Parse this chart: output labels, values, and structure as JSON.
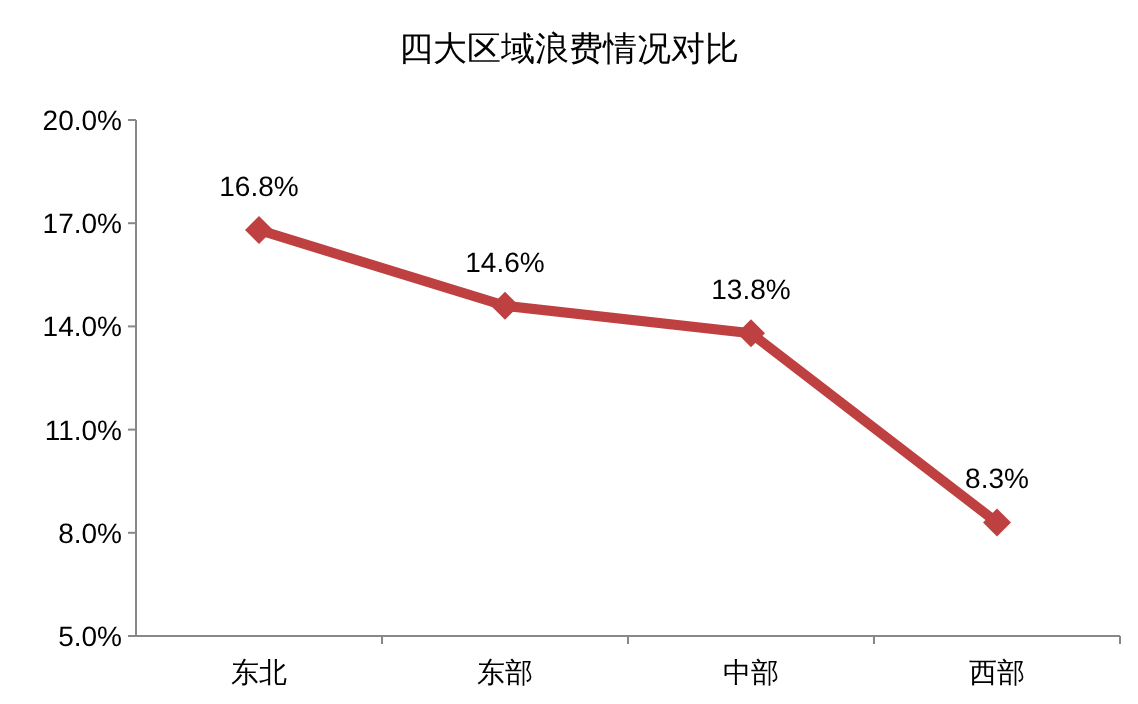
{
  "chart_data": {
    "type": "line",
    "title": "四大区域浪费情况对比",
    "categories": [
      "东北",
      "东部",
      "中部",
      "西部"
    ],
    "series": [
      {
        "color": "#be4040",
        "values": [
          16.8,
          14.6,
          13.8,
          8.3
        ],
        "value_labels": [
          "16.8%",
          "14.6%",
          "13.8%",
          "8.3%"
        ]
      }
    ],
    "ylim": [
      5,
      20
    ],
    "yticks": [
      {
        "value": 5,
        "label": "5.0%"
      },
      {
        "value": 8,
        "label": "8.0%"
      },
      {
        "value": 11,
        "label": "11.0%"
      },
      {
        "value": 14,
        "label": "14.0%"
      },
      {
        "value": 17,
        "label": "17.0%"
      },
      {
        "value": 20,
        "label": "20.0%"
      }
    ],
    "marker": "diamond",
    "line_style": "solid"
  }
}
